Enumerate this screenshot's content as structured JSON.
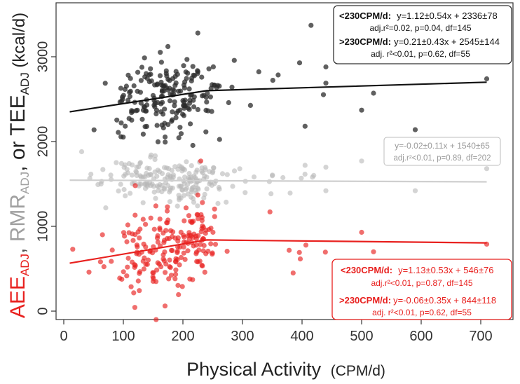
{
  "chart_data": {
    "type": "scatter",
    "title": "",
    "xlabel": "Physical Activity",
    "xlabel_unit": "(CPM/d)",
    "ylabel_parts": {
      "aee": "AEE",
      "aee_sub": "ADJ",
      "sep1": ", ",
      "rmr": "RMR",
      "rmr_sub": "ADJ",
      "sep2": ", or ",
      "tee": "TEE",
      "tee_sub": "ADJ",
      "unit": " (kcal/d)"
    },
    "xlim": [
      0,
      720
    ],
    "ylim": [
      -100,
      3550
    ],
    "xticks": [
      0,
      100,
      200,
      300,
      400,
      500,
      600,
      700
    ],
    "yticks": [
      0,
      1000,
      2000,
      3000
    ],
    "grid": false,
    "colors": {
      "tee": "#2b2b2b",
      "rmr": "#b8b8b8",
      "aee": "#e8201e",
      "fit_tee": "#111111",
      "fit_rmr": "#cfcfcf",
      "fit_aee": "#e8201e"
    },
    "series": [
      {
        "id": "tee",
        "seed": 11,
        "n": 200,
        "fit": [
          [
            10,
            2350
          ],
          [
            240,
            2600
          ],
          [
            710,
            2700
          ]
        ],
        "xcluster": [
          100,
          240
        ],
        "xspread": [
          40,
          710
        ],
        "ycenter_fn": "fit",
        "yspread": 230,
        "extra_points": [
          [
            710,
            2740
          ],
          [
            590,
            2140
          ],
          [
            500,
            2370
          ],
          [
            415,
            3370
          ],
          [
            440,
            2880
          ],
          [
            405,
            2180
          ],
          [
            225,
            3280
          ],
          [
            520,
            2570
          ]
        ]
      },
      {
        "id": "rmr",
        "seed": 23,
        "n": 200,
        "fit": [
          [
            10,
            1545
          ],
          [
            710,
            1525
          ]
        ],
        "xcluster": [
          100,
          240
        ],
        "xspread": [
          40,
          710
        ],
        "ycenter_fn": "fit",
        "yspread": 120,
        "extra_points": [
          [
            710,
            1680
          ],
          [
            590,
            1420
          ],
          [
            500,
            1770
          ],
          [
            405,
            1720
          ],
          [
            440,
            1420
          ],
          [
            30,
            1880
          ]
        ]
      },
      {
        "id": "aee",
        "seed": 37,
        "n": 200,
        "fit": [
          [
            10,
            565
          ],
          [
            240,
            840
          ],
          [
            710,
            805
          ]
        ],
        "xcluster": [
          100,
          240
        ],
        "xspread": [
          40,
          710
        ],
        "ycenter_fn": "fit",
        "yspread": 210,
        "extra_points": [
          [
            710,
            790
          ],
          [
            500,
            930
          ],
          [
            520,
            700
          ],
          [
            385,
            450
          ],
          [
            170,
            60
          ],
          [
            155,
            -100
          ],
          [
            225,
            1370
          ],
          [
            230,
            1770
          ],
          [
            120,
            1480
          ],
          [
            15,
            730
          ]
        ]
      }
    ],
    "annotations": {
      "tee_box": {
        "l1_label": "<230CPM/d:",
        "l1_eq": "y=1.12±0.54x + 2336±78",
        "l2": "adj.r²=0.02, p=0.04, df=145",
        "l3_label": ">230CPM/d:",
        "l3_eq": "y=0.21±0.43x + 2545±144",
        "l4": "adj. r²<0.01, p=0.62, df=55"
      },
      "rmr_box": {
        "l1": "y=-0.02±0.11x + 1540±65",
        "l2": "adj.r²<0.01, p=0.89, df=202"
      },
      "aee_box": {
        "l1_label": "<230CPM/d:",
        "l1_eq": "y=1.13±0.53x + 546±76",
        "l2": "adj.r²<0.01, p=0.87, df=145",
        "l3_label": ">230CPM/d:",
        "l3_eq": "y=-0.06±0.35x + 844±118",
        "l4": "adj. r²<0.01, p=0.62, df=55"
      }
    }
  }
}
